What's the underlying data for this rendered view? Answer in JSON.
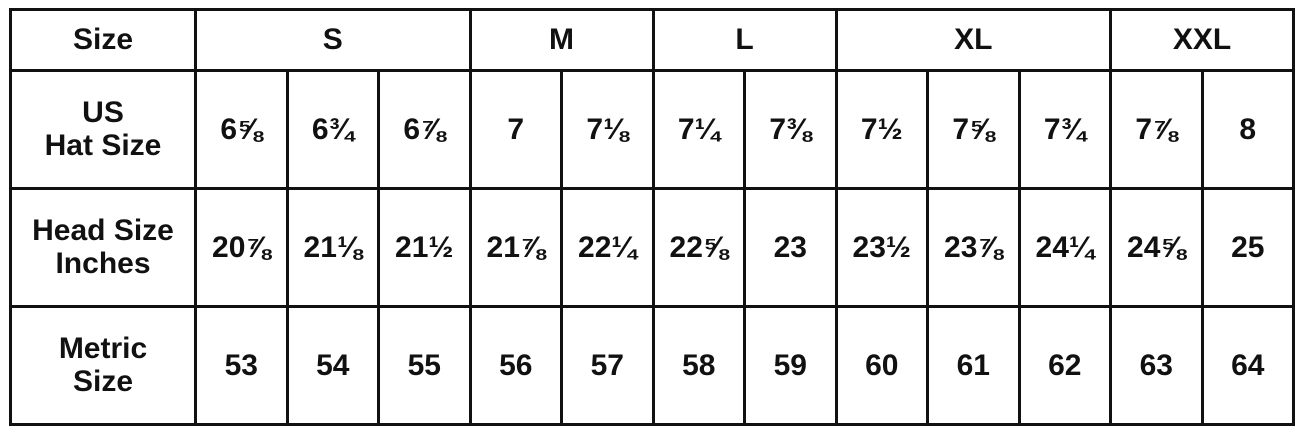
{
  "header": {
    "label": "Size",
    "groups": [
      {
        "label": "S",
        "span": 3
      },
      {
        "label": "M",
        "span": 2
      },
      {
        "label": "L",
        "span": 2
      },
      {
        "label": "XL",
        "span": 3
      },
      {
        "label": "XXL",
        "span": 2
      }
    ]
  },
  "rows": [
    {
      "label_line1": "US",
      "label_line2": "Hat Size",
      "values": [
        "6⅝",
        "6¾",
        "6⅞",
        "7",
        "7⅛",
        "7¼",
        "7⅜",
        "7½",
        "7⅝",
        "7¾",
        "7⅞",
        "8"
      ]
    },
    {
      "label_line1": "Head Size",
      "label_line2": "Inches",
      "values": [
        "20⅞",
        "21⅛",
        "21½",
        "21⅞",
        "22¼",
        "22⅝",
        "23",
        "23½",
        "23⅞",
        "24¼",
        "24⅝",
        "25"
      ]
    },
    {
      "label_line1": "Metric",
      "label_line2": "Size",
      "values": [
        "53",
        "54",
        "55",
        "56",
        "57",
        "58",
        "59",
        "60",
        "61",
        "62",
        "63",
        "64"
      ]
    }
  ]
}
